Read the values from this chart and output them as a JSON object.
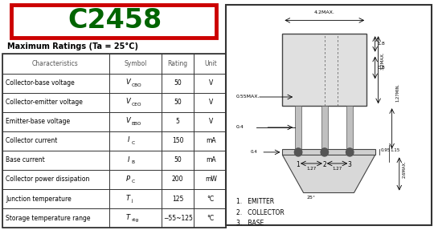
{
  "title": "C2458",
  "title_color": "#006400",
  "title_border_color": "#cc0000",
  "subtitle": "Maximum Ratings (Ta = 25°C)",
  "table_headers": [
    "Characteristics",
    "Symbol",
    "Rating",
    "Unit"
  ],
  "table_rows": [
    [
      "Collector-base voltage",
      "VCBO",
      "50",
      "V"
    ],
    [
      "Collector-emitter voltage",
      "VCEO",
      "50",
      "V"
    ],
    [
      "Emitter-base voltage",
      "VEBO",
      "5",
      "V"
    ],
    [
      "Collector current",
      "IC",
      "150",
      "mA"
    ],
    [
      "Base current",
      "IB",
      "50",
      "mA"
    ],
    [
      "Collector power dissipation",
      "PC",
      "200",
      "mW"
    ],
    [
      "Junction temperature",
      "Tj",
      "125",
      "°C"
    ],
    [
      "Storage temperature range",
      "Tstg",
      "−55~125",
      "°C"
    ]
  ],
  "symbol_main": [
    "V",
    "V",
    "V",
    "I",
    "I",
    "P",
    "T",
    "T"
  ],
  "symbol_sub": [
    "CBO",
    "CEO",
    "EBO",
    "C",
    "B",
    "C",
    "j",
    "stg"
  ],
  "diagram_labels": [
    "1.   EMITTER",
    "2.   COLLECTOR",
    "3.   BASE"
  ],
  "bg_color": "#ffffff"
}
